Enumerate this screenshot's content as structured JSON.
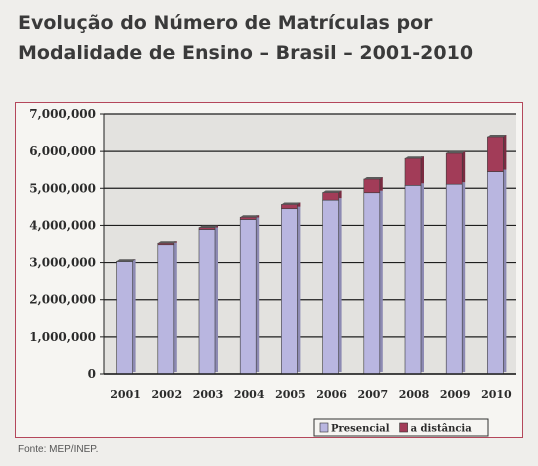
{
  "title": "Evolução do Número de Matrículas por Modalidade de Ensino – Brasil – 2001-2010",
  "source": "Fonte: MEP/INEP.",
  "chart_data": {
    "type": "bar",
    "stacked": true,
    "categories": [
      "2001",
      "2002",
      "2003",
      "2004",
      "2005",
      "2006",
      "2007",
      "2008",
      "2009",
      "2010"
    ],
    "series": [
      {
        "name": "Presencial",
        "color": "#b9b6e0",
        "values": [
          3030000,
          3480000,
          3890000,
          4160000,
          4450000,
          4680000,
          4880000,
          5080000,
          5110000,
          5450000
        ]
      },
      {
        "name": "a distância",
        "color": "#a23c58",
        "values": [
          5000,
          40000,
          50000,
          60000,
          115000,
          205000,
          370000,
          730000,
          840000,
          930000
        ]
      }
    ],
    "ylim": [
      0,
      7000000
    ],
    "yticks": [
      "0",
      "1,000,000",
      "2,000,000",
      "3,000,000",
      "4,000,000",
      "5,000,000",
      "6,000,000",
      "7,000,000"
    ],
    "grid": true,
    "legend_position": "bottom-right"
  }
}
